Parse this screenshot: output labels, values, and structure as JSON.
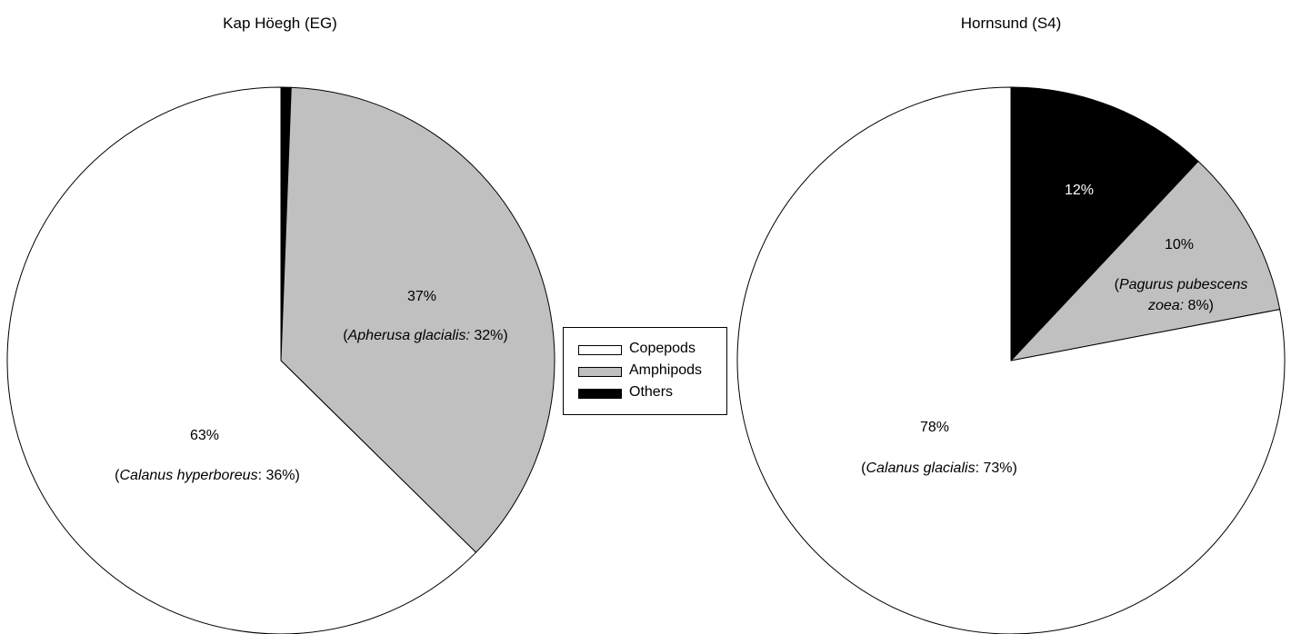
{
  "colors": {
    "copepods": "#ffffff",
    "amphipods": "#c0c0c0",
    "others": "#000000",
    "stroke": "#000000"
  },
  "legend": {
    "placement": "center",
    "items": [
      {
        "label": "Copepods",
        "color": "#ffffff"
      },
      {
        "label": "Amphipods",
        "color": "#c0c0c0"
      },
      {
        "label": "Others",
        "color": "#000000"
      }
    ]
  },
  "chart_data": [
    {
      "type": "pie",
      "title": "Kap Höegh (EG)",
      "slices": [
        {
          "category": "Others",
          "value": 0.6,
          "color": "#000000",
          "label": "",
          "note": ""
        },
        {
          "category": "Amphipods",
          "value": 37,
          "color": "#c0c0c0",
          "label": "37%",
          "note_prefix": "(",
          "note_species": "Apherusa glacialis:",
          "note_suffix": " 32%)"
        },
        {
          "category": "Copepods",
          "value": 63,
          "color": "#ffffff",
          "label": "63%",
          "note_prefix": "(",
          "note_species": "Calanus hyperboreus",
          "note_suffix": ": 36%)"
        }
      ]
    },
    {
      "type": "pie",
      "title": "Hornsund (S4)",
      "slices": [
        {
          "category": "Others",
          "value": 12,
          "color": "#000000",
          "label": "12%"
        },
        {
          "category": "Amphipods",
          "value": 10,
          "color": "#c0c0c0",
          "label": "10%",
          "note_line1_prefix": "(",
          "note_line1_species": "Pagurus pubescens",
          "note_line2_species": "zoea:",
          "note_line2_suffix": " 8%)"
        },
        {
          "category": "Copepods",
          "value": 78,
          "color": "#ffffff",
          "label": "78%",
          "note_prefix": "(",
          "note_species": "Calanus glacialis",
          "note_suffix": ": 73%)"
        }
      ]
    }
  ]
}
